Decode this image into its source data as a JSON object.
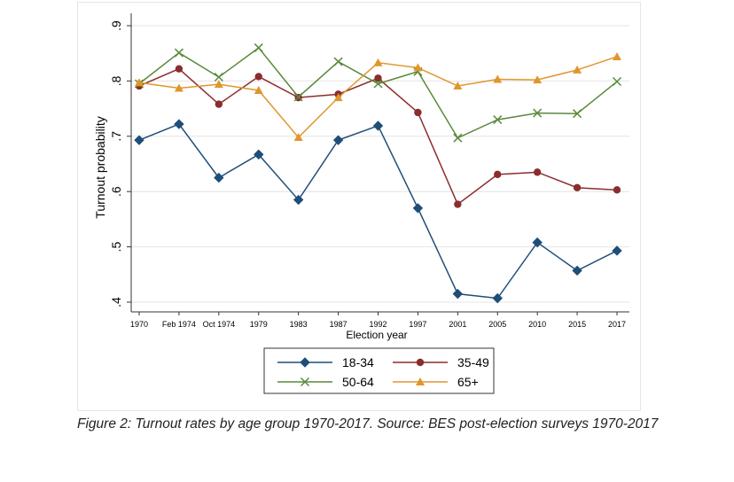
{
  "caption": "Figure 2: Turnout rates by age group 1970-2017. Source: BES post-election surveys 1970-2017",
  "chart_data": {
    "type": "line",
    "title": "",
    "xlabel": "Election year",
    "ylabel": "Turnout probability",
    "categories": [
      "1970",
      "Feb 1974",
      "Oct 1974",
      "1979",
      "1983",
      "1987",
      "1992",
      "1997",
      "2001",
      "2005",
      "2010",
      "2015",
      "2017"
    ],
    "ylim": [
      0.4,
      0.9
    ],
    "yticks": [
      0.4,
      0.5,
      0.6,
      0.7,
      0.8,
      0.9
    ],
    "ytick_labels": [
      ".4",
      ".5",
      ".6",
      ".7",
      ".8",
      ".9"
    ],
    "grid": "horizontal",
    "legend": "bottom",
    "series": [
      {
        "name": "18-34",
        "color": "#1f4e79",
        "marker": "diamond",
        "values": [
          0.693,
          0.722,
          0.625,
          0.667,
          0.585,
          0.693,
          0.719,
          0.57,
          0.415,
          0.407,
          0.508,
          0.457,
          0.493
        ]
      },
      {
        "name": "35-49",
        "color": "#8b2d2d",
        "marker": "circle",
        "values": [
          0.791,
          0.822,
          0.758,
          0.808,
          0.77,
          0.776,
          0.805,
          0.743,
          0.577,
          0.631,
          0.635,
          0.607,
          0.603
        ]
      },
      {
        "name": "50-64",
        "color": "#5a8a3c",
        "marker": "x",
        "values": [
          0.795,
          0.851,
          0.807,
          0.86,
          0.771,
          0.835,
          0.795,
          0.817,
          0.697,
          0.73,
          0.742,
          0.741,
          0.799
        ]
      },
      {
        "name": "65+",
        "color": "#e0962b",
        "marker": "triangle",
        "values": [
          0.797,
          0.787,
          0.794,
          0.783,
          0.698,
          0.77,
          0.833,
          0.824,
          0.791,
          0.803,
          0.802,
          0.82,
          0.844
        ]
      }
    ]
  }
}
